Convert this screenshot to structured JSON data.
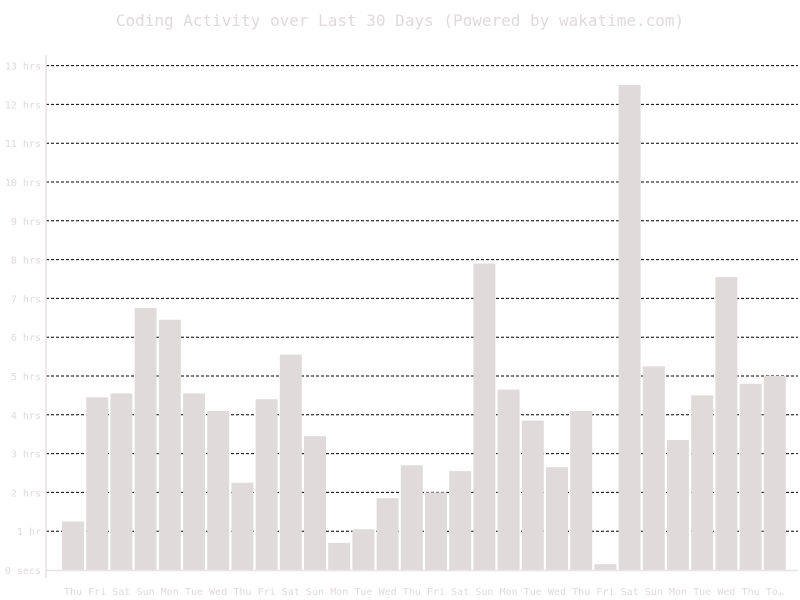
{
  "chart_data": {
    "type": "bar",
    "title": "Coding Activity over Last 30 Days (Powered by wakatime.com)",
    "xlabel": "",
    "ylabel": "",
    "ylim": [
      0,
      13
    ],
    "y_ticks": [
      {
        "value": 0,
        "label": "0 secs"
      },
      {
        "value": 1,
        "label": "1 hr"
      },
      {
        "value": 2,
        "label": "2 hrs"
      },
      {
        "value": 3,
        "label": "3 hrs"
      },
      {
        "value": 4,
        "label": "4 hrs"
      },
      {
        "value": 5,
        "label": "5 hrs"
      },
      {
        "value": 6,
        "label": "6 hrs"
      },
      {
        "value": 7,
        "label": "7 hrs"
      },
      {
        "value": 8,
        "label": "8 hrs"
      },
      {
        "value": 9,
        "label": "9 hrs"
      },
      {
        "value": 10,
        "label": "10 hrs"
      },
      {
        "value": 11,
        "label": "11 hrs"
      },
      {
        "value": 12,
        "label": "12 hrs"
      },
      {
        "value": 13,
        "label": "13 hrs"
      }
    ],
    "categories": [
      "Thu",
      "Fri",
      "Sat",
      "Sun",
      "Mon",
      "Tue",
      "Wed",
      "Thu",
      "Fri",
      "Sat",
      "Sun",
      "Mon",
      "Tue",
      "Wed",
      "Thu",
      "Fri",
      "Sat",
      "Sun",
      "Mon",
      "Tue",
      "Wed",
      "Thu",
      "Fri",
      "Sat",
      "Sun",
      "Mon",
      "Tue",
      "Wed",
      "Thu",
      "To…"
    ],
    "values": [
      1.25,
      4.45,
      4.55,
      6.75,
      6.45,
      4.55,
      4.1,
      2.25,
      4.4,
      5.55,
      3.45,
      0.7,
      1.05,
      1.85,
      2.7,
      2.0,
      2.55,
      7.9,
      4.65,
      3.85,
      2.65,
      4.1,
      0.15,
      12.5,
      5.25,
      3.35,
      4.5,
      7.55,
      4.8,
      5.0
    ],
    "grid": true,
    "legend": "none",
    "colors": {
      "bar": "#e0dadb",
      "grid": "#000000",
      "axis": "#e8e4e4",
      "text": "#e0dadb"
    }
  }
}
